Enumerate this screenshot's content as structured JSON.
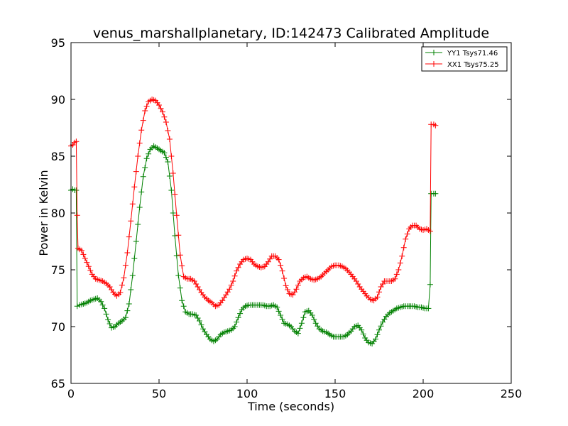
{
  "chart_data": {
    "type": "line",
    "title": "venus_marshallplanetary, ID:142473 Calibrated Amplitude",
    "xlabel": "Time (seconds)",
    "ylabel": "Power in Kelvin",
    "xlim": [
      0,
      250
    ],
    "ylim": [
      65,
      95
    ],
    "xticks": [
      0,
      50,
      100,
      150,
      200,
      250
    ],
    "yticks": [
      65,
      70,
      75,
      80,
      85,
      90,
      95
    ],
    "grid": false,
    "legend_position": "top-right",
    "marker": "+",
    "series": [
      {
        "name": "YY1 Tsys71.46",
        "color": "#008000",
        "points": [
          [
            0,
            82.0
          ],
          [
            1,
            82.1
          ],
          [
            2,
            82.0
          ],
          [
            3,
            82.0
          ],
          [
            3.5,
            71.8
          ],
          [
            5,
            71.9
          ],
          [
            7,
            72.0
          ],
          [
            9,
            72.1
          ],
          [
            11,
            72.3
          ],
          [
            13,
            72.4
          ],
          [
            15,
            72.5
          ],
          [
            17,
            72.2
          ],
          [
            19,
            71.6
          ],
          [
            21,
            70.6
          ],
          [
            23,
            69.9
          ],
          [
            25,
            70.0
          ],
          [
            27,
            70.3
          ],
          [
            29,
            70.5
          ],
          [
            31,
            70.8
          ],
          [
            33,
            72.0
          ],
          [
            35,
            74.5
          ],
          [
            37,
            77.5
          ],
          [
            39,
            80.5
          ],
          [
            41,
            83.2
          ],
          [
            43,
            84.8
          ],
          [
            45,
            85.6
          ],
          [
            47,
            85.9
          ],
          [
            49,
            85.7
          ],
          [
            51,
            85.5
          ],
          [
            53,
            85.3
          ],
          [
            55,
            84.5
          ],
          [
            57,
            82.0
          ],
          [
            59,
            78.0
          ],
          [
            61,
            74.5
          ],
          [
            63,
            72.3
          ],
          [
            65,
            71.3
          ],
          [
            67,
            71.1
          ],
          [
            69,
            71.1
          ],
          [
            71,
            71.0
          ],
          [
            73,
            70.5
          ],
          [
            75,
            69.8
          ],
          [
            77,
            69.3
          ],
          [
            79,
            68.9
          ],
          [
            81,
            68.7
          ],
          [
            83,
            68.9
          ],
          [
            85,
            69.3
          ],
          [
            87,
            69.5
          ],
          [
            89,
            69.6
          ],
          [
            91,
            69.7
          ],
          [
            93,
            70.0
          ],
          [
            95,
            70.8
          ],
          [
            97,
            71.5
          ],
          [
            99,
            71.8
          ],
          [
            101,
            71.9
          ],
          [
            103,
            71.9
          ],
          [
            105,
            71.9
          ],
          [
            107,
            71.9
          ],
          [
            109,
            71.9
          ],
          [
            111,
            71.8
          ],
          [
            113,
            71.8
          ],
          [
            115,
            71.9
          ],
          [
            117,
            71.7
          ],
          [
            119,
            71.0
          ],
          [
            121,
            70.3
          ],
          [
            123,
            70.2
          ],
          [
            125,
            70.0
          ],
          [
            127,
            69.6
          ],
          [
            129,
            69.4
          ],
          [
            131,
            70.3
          ],
          [
            133,
            71.3
          ],
          [
            135,
            71.4
          ],
          [
            137,
            71.0
          ],
          [
            139,
            70.3
          ],
          [
            141,
            69.8
          ],
          [
            143,
            69.6
          ],
          [
            145,
            69.5
          ],
          [
            147,
            69.3
          ],
          [
            149,
            69.1
          ],
          [
            151,
            69.1
          ],
          [
            153,
            69.1
          ],
          [
            155,
            69.1
          ],
          [
            157,
            69.3
          ],
          [
            159,
            69.6
          ],
          [
            161,
            70.0
          ],
          [
            163,
            70.1
          ],
          [
            165,
            69.7
          ],
          [
            167,
            69.0
          ],
          [
            169,
            68.6
          ],
          [
            171,
            68.5
          ],
          [
            173,
            68.9
          ],
          [
            175,
            69.7
          ],
          [
            177,
            70.4
          ],
          [
            179,
            70.9
          ],
          [
            181,
            71.2
          ],
          [
            183,
            71.4
          ],
          [
            185,
            71.6
          ],
          [
            187,
            71.7
          ],
          [
            189,
            71.8
          ],
          [
            191,
            71.8
          ],
          [
            193,
            71.8
          ],
          [
            195,
            71.8
          ],
          [
            197,
            71.7
          ],
          [
            199,
            71.7
          ],
          [
            201,
            71.6
          ],
          [
            203,
            71.6
          ],
          [
            204,
            73.7
          ],
          [
            204.5,
            81.7
          ],
          [
            206,
            81.7
          ],
          [
            207,
            81.7
          ]
        ]
      },
      {
        "name": "XX1 Tsys75.25",
        "color": "#ff0000",
        "points": [
          [
            0,
            85.9
          ],
          [
            1,
            86.0
          ],
          [
            2,
            86.2
          ],
          [
            3,
            86.3
          ],
          [
            3.5,
            79.8
          ],
          [
            4,
            76.9
          ],
          [
            6,
            76.7
          ],
          [
            8,
            76.0
          ],
          [
            10,
            75.3
          ],
          [
            12,
            74.6
          ],
          [
            14,
            74.2
          ],
          [
            16,
            74.1
          ],
          [
            18,
            74.0
          ],
          [
            20,
            73.8
          ],
          [
            22,
            73.5
          ],
          [
            24,
            73.0
          ],
          [
            26,
            72.7
          ],
          [
            28,
            73.0
          ],
          [
            30,
            74.3
          ],
          [
            32,
            76.5
          ],
          [
            34,
            79.3
          ],
          [
            36,
            82.3
          ],
          [
            38,
            85.0
          ],
          [
            40,
            87.3
          ],
          [
            42,
            89.0
          ],
          [
            44,
            89.8
          ],
          [
            46,
            90.0
          ],
          [
            48,
            89.9
          ],
          [
            50,
            89.5
          ],
          [
            52,
            88.9
          ],
          [
            54,
            88.0
          ],
          [
            56,
            86.5
          ],
          [
            58,
            83.5
          ],
          [
            60,
            79.8
          ],
          [
            62,
            76.3
          ],
          [
            64,
            74.4
          ],
          [
            66,
            74.2
          ],
          [
            68,
            74.2
          ],
          [
            70,
            74.0
          ],
          [
            72,
            73.5
          ],
          [
            74,
            73.0
          ],
          [
            76,
            72.6
          ],
          [
            78,
            72.3
          ],
          [
            80,
            72.1
          ],
          [
            82,
            71.8
          ],
          [
            84,
            71.9
          ],
          [
            86,
            72.3
          ],
          [
            88,
            72.8
          ],
          [
            90,
            73.3
          ],
          [
            92,
            74.0
          ],
          [
            94,
            74.9
          ],
          [
            96,
            75.5
          ],
          [
            98,
            75.9
          ],
          [
            100,
            76.0
          ],
          [
            102,
            75.9
          ],
          [
            104,
            75.5
          ],
          [
            106,
            75.3
          ],
          [
            108,
            75.2
          ],
          [
            110,
            75.3
          ],
          [
            112,
            75.7
          ],
          [
            114,
            76.2
          ],
          [
            116,
            76.2
          ],
          [
            118,
            75.9
          ],
          [
            120,
            74.9
          ],
          [
            122,
            73.6
          ],
          [
            124,
            72.9
          ],
          [
            126,
            72.8
          ],
          [
            128,
            73.3
          ],
          [
            130,
            74.0
          ],
          [
            132,
            74.3
          ],
          [
            134,
            74.4
          ],
          [
            136,
            74.2
          ],
          [
            138,
            74.1
          ],
          [
            140,
            74.2
          ],
          [
            142,
            74.4
          ],
          [
            144,
            74.7
          ],
          [
            146,
            75.0
          ],
          [
            148,
            75.3
          ],
          [
            150,
            75.4
          ],
          [
            152,
            75.4
          ],
          [
            154,
            75.3
          ],
          [
            156,
            75.1
          ],
          [
            158,
            74.8
          ],
          [
            160,
            74.4
          ],
          [
            162,
            74.0
          ],
          [
            164,
            73.5
          ],
          [
            166,
            73.1
          ],
          [
            168,
            72.7
          ],
          [
            170,
            72.4
          ],
          [
            172,
            72.3
          ],
          [
            174,
            72.6
          ],
          [
            176,
            73.5
          ],
          [
            178,
            74.0
          ],
          [
            180,
            74.0
          ],
          [
            182,
            74.0
          ],
          [
            184,
            74.2
          ],
          [
            186,
            75.0
          ],
          [
            188,
            76.2
          ],
          [
            190,
            77.7
          ],
          [
            192,
            78.6
          ],
          [
            194,
            78.9
          ],
          [
            196,
            78.9
          ],
          [
            198,
            78.6
          ],
          [
            200,
            78.5
          ],
          [
            202,
            78.6
          ],
          [
            203,
            78.5
          ],
          [
            204,
            78.4
          ],
          [
            204.5,
            87.8
          ],
          [
            206,
            87.8
          ],
          [
            207,
            87.7
          ]
        ]
      }
    ]
  }
}
